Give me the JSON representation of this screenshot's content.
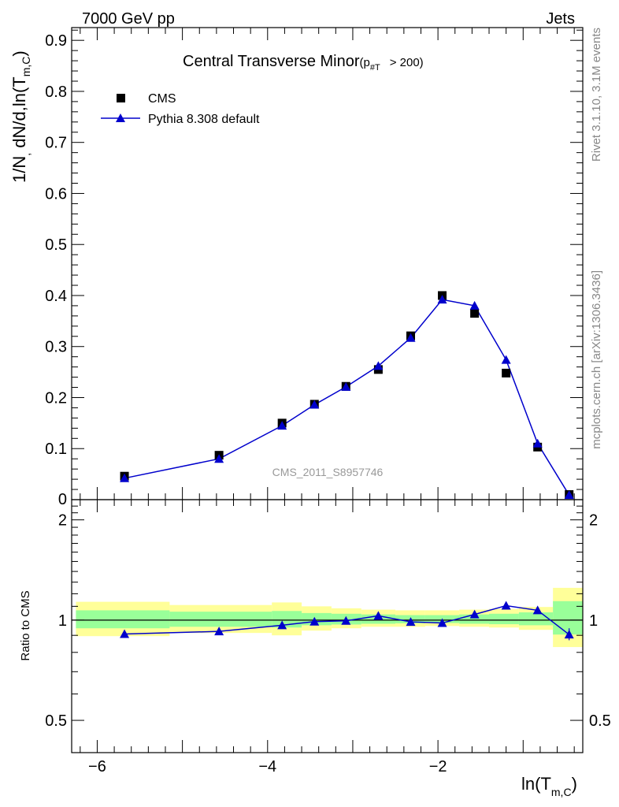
{
  "header": {
    "left": "7000 GeV pp",
    "right": "Jets"
  },
  "side_labels": {
    "rivet": "Rivet 3.1.10,  3.1M events",
    "mcplots": "mcplots.cern.ch [arXiv:1306.3436]"
  },
  "watermark": "CMS_2011_S8957746",
  "chart_data": [
    {
      "type": "scatter",
      "panel": "main",
      "title_main": "Central Transverse Minor",
      "title_sub_prefix": "(p",
      "title_sub_script": "#T",
      "title_sub_suffix": "> 200)",
      "ylabel_main": "1/N",
      "ylabel_sub1": ",",
      "ylabel_mid": " dN/d,ln(T",
      "ylabel_sub2": "m,C",
      "ylabel_end": ")",
      "xlabel_main": "ln(T",
      "xlabel_sub": "m,C",
      "xlabel_end": ")",
      "xlim": [
        -6.3,
        -0.3
      ],
      "ylim": [
        0,
        0.925
      ],
      "y_ticks": [
        {
          "v": 0.1,
          "label": "0.1"
        },
        {
          "v": 0.2,
          "label": "0.2"
        },
        {
          "v": 0.3,
          "label": "0.3"
        },
        {
          "v": 0.4,
          "label": "0.4"
        },
        {
          "v": 0.5,
          "label": "0.5"
        },
        {
          "v": 0.6,
          "label": "0.6"
        },
        {
          "v": 0.7,
          "label": "0.7"
        },
        {
          "v": 0.8,
          "label": "0.8"
        },
        {
          "v": 0.9,
          "label": "0.9"
        }
      ],
      "y_zero_label": "0",
      "x_ticks": [
        {
          "v": -6,
          "label": "−6"
        },
        {
          "v": -4,
          "label": "−4"
        },
        {
          "v": -2,
          "label": "−2"
        }
      ],
      "legend_position": "top-left",
      "series": [
        {
          "name": "CMS",
          "marker": "square",
          "color": "#000000",
          "x": [
            -5.68,
            -4.57,
            -3.83,
            -3.45,
            -3.08,
            -2.7,
            -2.32,
            -1.95,
            -1.57,
            -1.2,
            -0.83,
            -0.46
          ],
          "y": [
            0.046,
            0.087,
            0.15,
            0.187,
            0.222,
            0.255,
            0.321,
            0.4,
            0.365,
            0.248,
            0.103,
            0.01
          ]
        },
        {
          "name": "Pythia 8.308 default",
          "marker": "triangle",
          "color": "#0000cc",
          "x": [
            -5.68,
            -4.57,
            -3.83,
            -3.45,
            -3.08,
            -2.7,
            -2.32,
            -1.95,
            -1.57,
            -1.2,
            -0.83,
            -0.46
          ],
          "y": [
            0.042,
            0.08,
            0.145,
            0.186,
            0.221,
            0.262,
            0.317,
            0.392,
            0.38,
            0.274,
            0.11,
            0.009
          ]
        }
      ]
    },
    {
      "type": "line",
      "panel": "ratio",
      "ylabel": "Ratio to CMS",
      "scale": "log",
      "ylim": [
        0.4,
        2.3
      ],
      "y_ticks": [
        {
          "v": 0.5,
          "label": "0.5"
        },
        {
          "v": 1,
          "label": "1"
        },
        {
          "v": 2,
          "label": "2"
        }
      ],
      "bins": [
        {
          "x0": -6.25,
          "x1": -5.15,
          "yellow": [
            0.895,
            1.135
          ],
          "green": [
            0.945,
            1.07
          ]
        },
        {
          "x0": -5.15,
          "x1": -3.95,
          "yellow": [
            0.915,
            1.11
          ],
          "green": [
            0.955,
            1.06
          ]
        },
        {
          "x0": -3.95,
          "x1": -3.6,
          "yellow": [
            0.9,
            1.13
          ],
          "green": [
            0.95,
            1.065
          ]
        },
        {
          "x0": -3.6,
          "x1": -3.25,
          "yellow": [
            0.93,
            1.1
          ],
          "green": [
            0.965,
            1.05
          ]
        },
        {
          "x0": -3.25,
          "x1": -2.9,
          "yellow": [
            0.945,
            1.085
          ],
          "green": [
            0.97,
            1.045
          ]
        },
        {
          "x0": -2.9,
          "x1": -2.5,
          "yellow": [
            0.955,
            1.075
          ],
          "green": [
            0.975,
            1.04
          ]
        },
        {
          "x0": -2.5,
          "x1": -2.15,
          "yellow": [
            0.955,
            1.07
          ],
          "green": [
            0.978,
            1.035
          ]
        },
        {
          "x0": -2.15,
          "x1": -1.75,
          "yellow": [
            0.96,
            1.07
          ],
          "green": [
            0.98,
            1.035
          ]
        },
        {
          "x0": -1.75,
          "x1": -1.4,
          "yellow": [
            0.955,
            1.075
          ],
          "green": [
            0.975,
            1.04
          ]
        },
        {
          "x0": -1.4,
          "x1": -1.05,
          "yellow": [
            0.95,
            1.08
          ],
          "green": [
            0.972,
            1.045
          ]
        },
        {
          "x0": -1.05,
          "x1": -0.65,
          "yellow": [
            0.935,
            1.095
          ],
          "green": [
            0.965,
            1.055
          ]
        },
        {
          "x0": -0.65,
          "x1": -0.3,
          "yellow": [
            0.83,
            1.25
          ],
          "green": [
            0.905,
            1.14
          ]
        }
      ],
      "series": [
        {
          "name": "Pythia 8.308 default",
          "color": "#0000cc",
          "x": [
            -5.68,
            -4.57,
            -3.83,
            -3.45,
            -3.08,
            -2.7,
            -2.32,
            -1.95,
            -1.57,
            -1.2,
            -0.83,
            -0.46
          ],
          "y": [
            0.908,
            0.925,
            0.965,
            0.99,
            0.995,
            1.03,
            0.988,
            0.98,
            1.04,
            1.105,
            1.07,
            0.905
          ],
          "yerr_last": [
            0.87,
            0.945
          ]
        }
      ]
    }
  ]
}
